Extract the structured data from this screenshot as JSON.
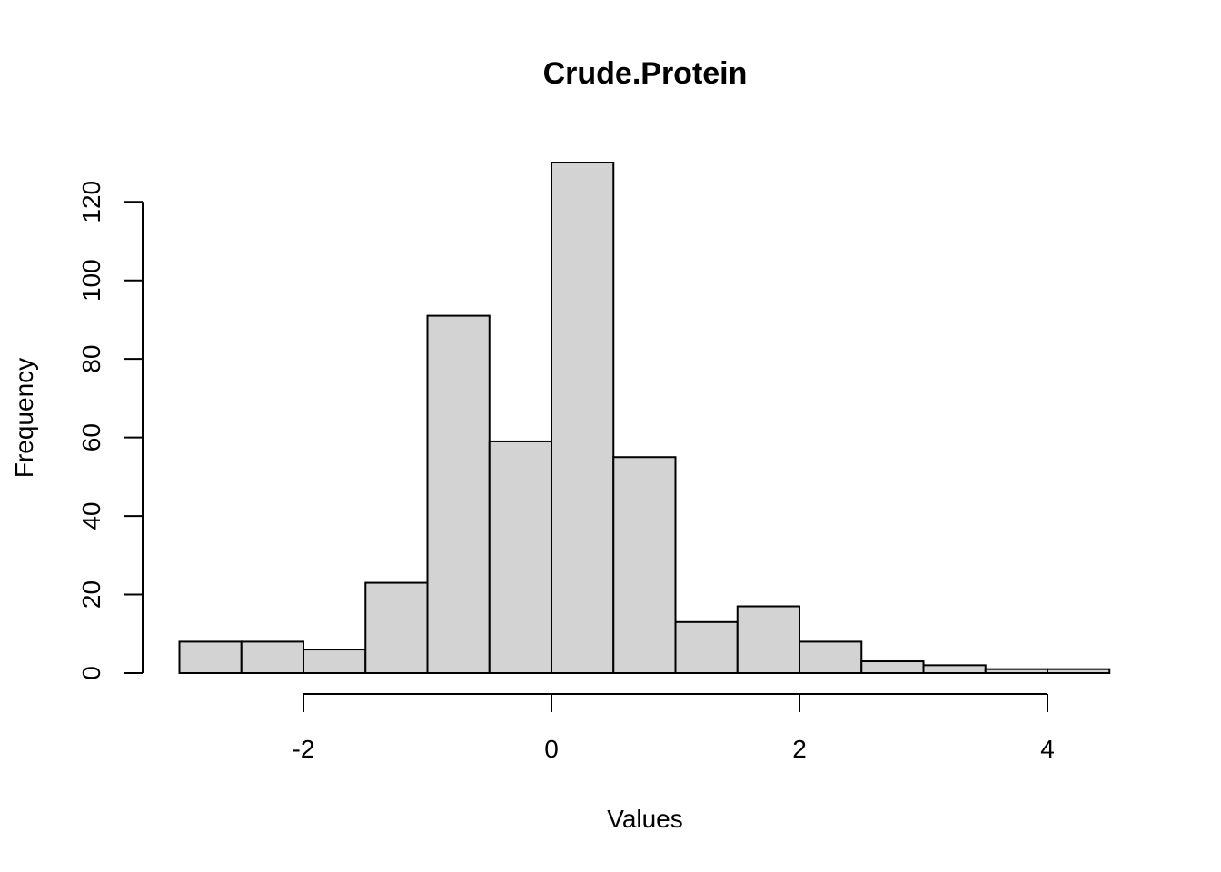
{
  "chart_data": {
    "type": "bar",
    "title": "Crude.Protein",
    "xlabel": "Values",
    "ylabel": "Frequency",
    "bins": [
      {
        "x0": -3.0,
        "x1": -2.5,
        "count": 8
      },
      {
        "x0": -2.5,
        "x1": -2.0,
        "count": 8
      },
      {
        "x0": -2.0,
        "x1": -1.5,
        "count": 6
      },
      {
        "x0": -1.5,
        "x1": -1.0,
        "count": 23
      },
      {
        "x0": -1.0,
        "x1": -0.5,
        "count": 91
      },
      {
        "x0": -0.5,
        "x1": 0.0,
        "count": 59
      },
      {
        "x0": 0.0,
        "x1": 0.5,
        "count": 130
      },
      {
        "x0": 0.5,
        "x1": 1.0,
        "count": 55
      },
      {
        "x0": 1.0,
        "x1": 1.5,
        "count": 13
      },
      {
        "x0": 1.5,
        "x1": 2.0,
        "count": 17
      },
      {
        "x0": 2.0,
        "x1": 2.5,
        "count": 8
      },
      {
        "x0": 2.5,
        "x1": 3.0,
        "count": 3
      },
      {
        "x0": 3.0,
        "x1": 3.5,
        "count": 2
      },
      {
        "x0": 3.5,
        "x1": 4.0,
        "count": 1
      },
      {
        "x0": 4.0,
        "x1": 4.5,
        "count": 1
      }
    ],
    "xlim": [
      -3.0,
      4.5
    ],
    "ylim": [
      0,
      130
    ],
    "xticks": [
      -2,
      0,
      2,
      4
    ],
    "yticks": [
      0,
      20,
      40,
      60,
      80,
      100,
      120
    ],
    "grid": false,
    "colors": {
      "bar_fill": "#d3d3d3",
      "bar_stroke": "#000000"
    }
  }
}
